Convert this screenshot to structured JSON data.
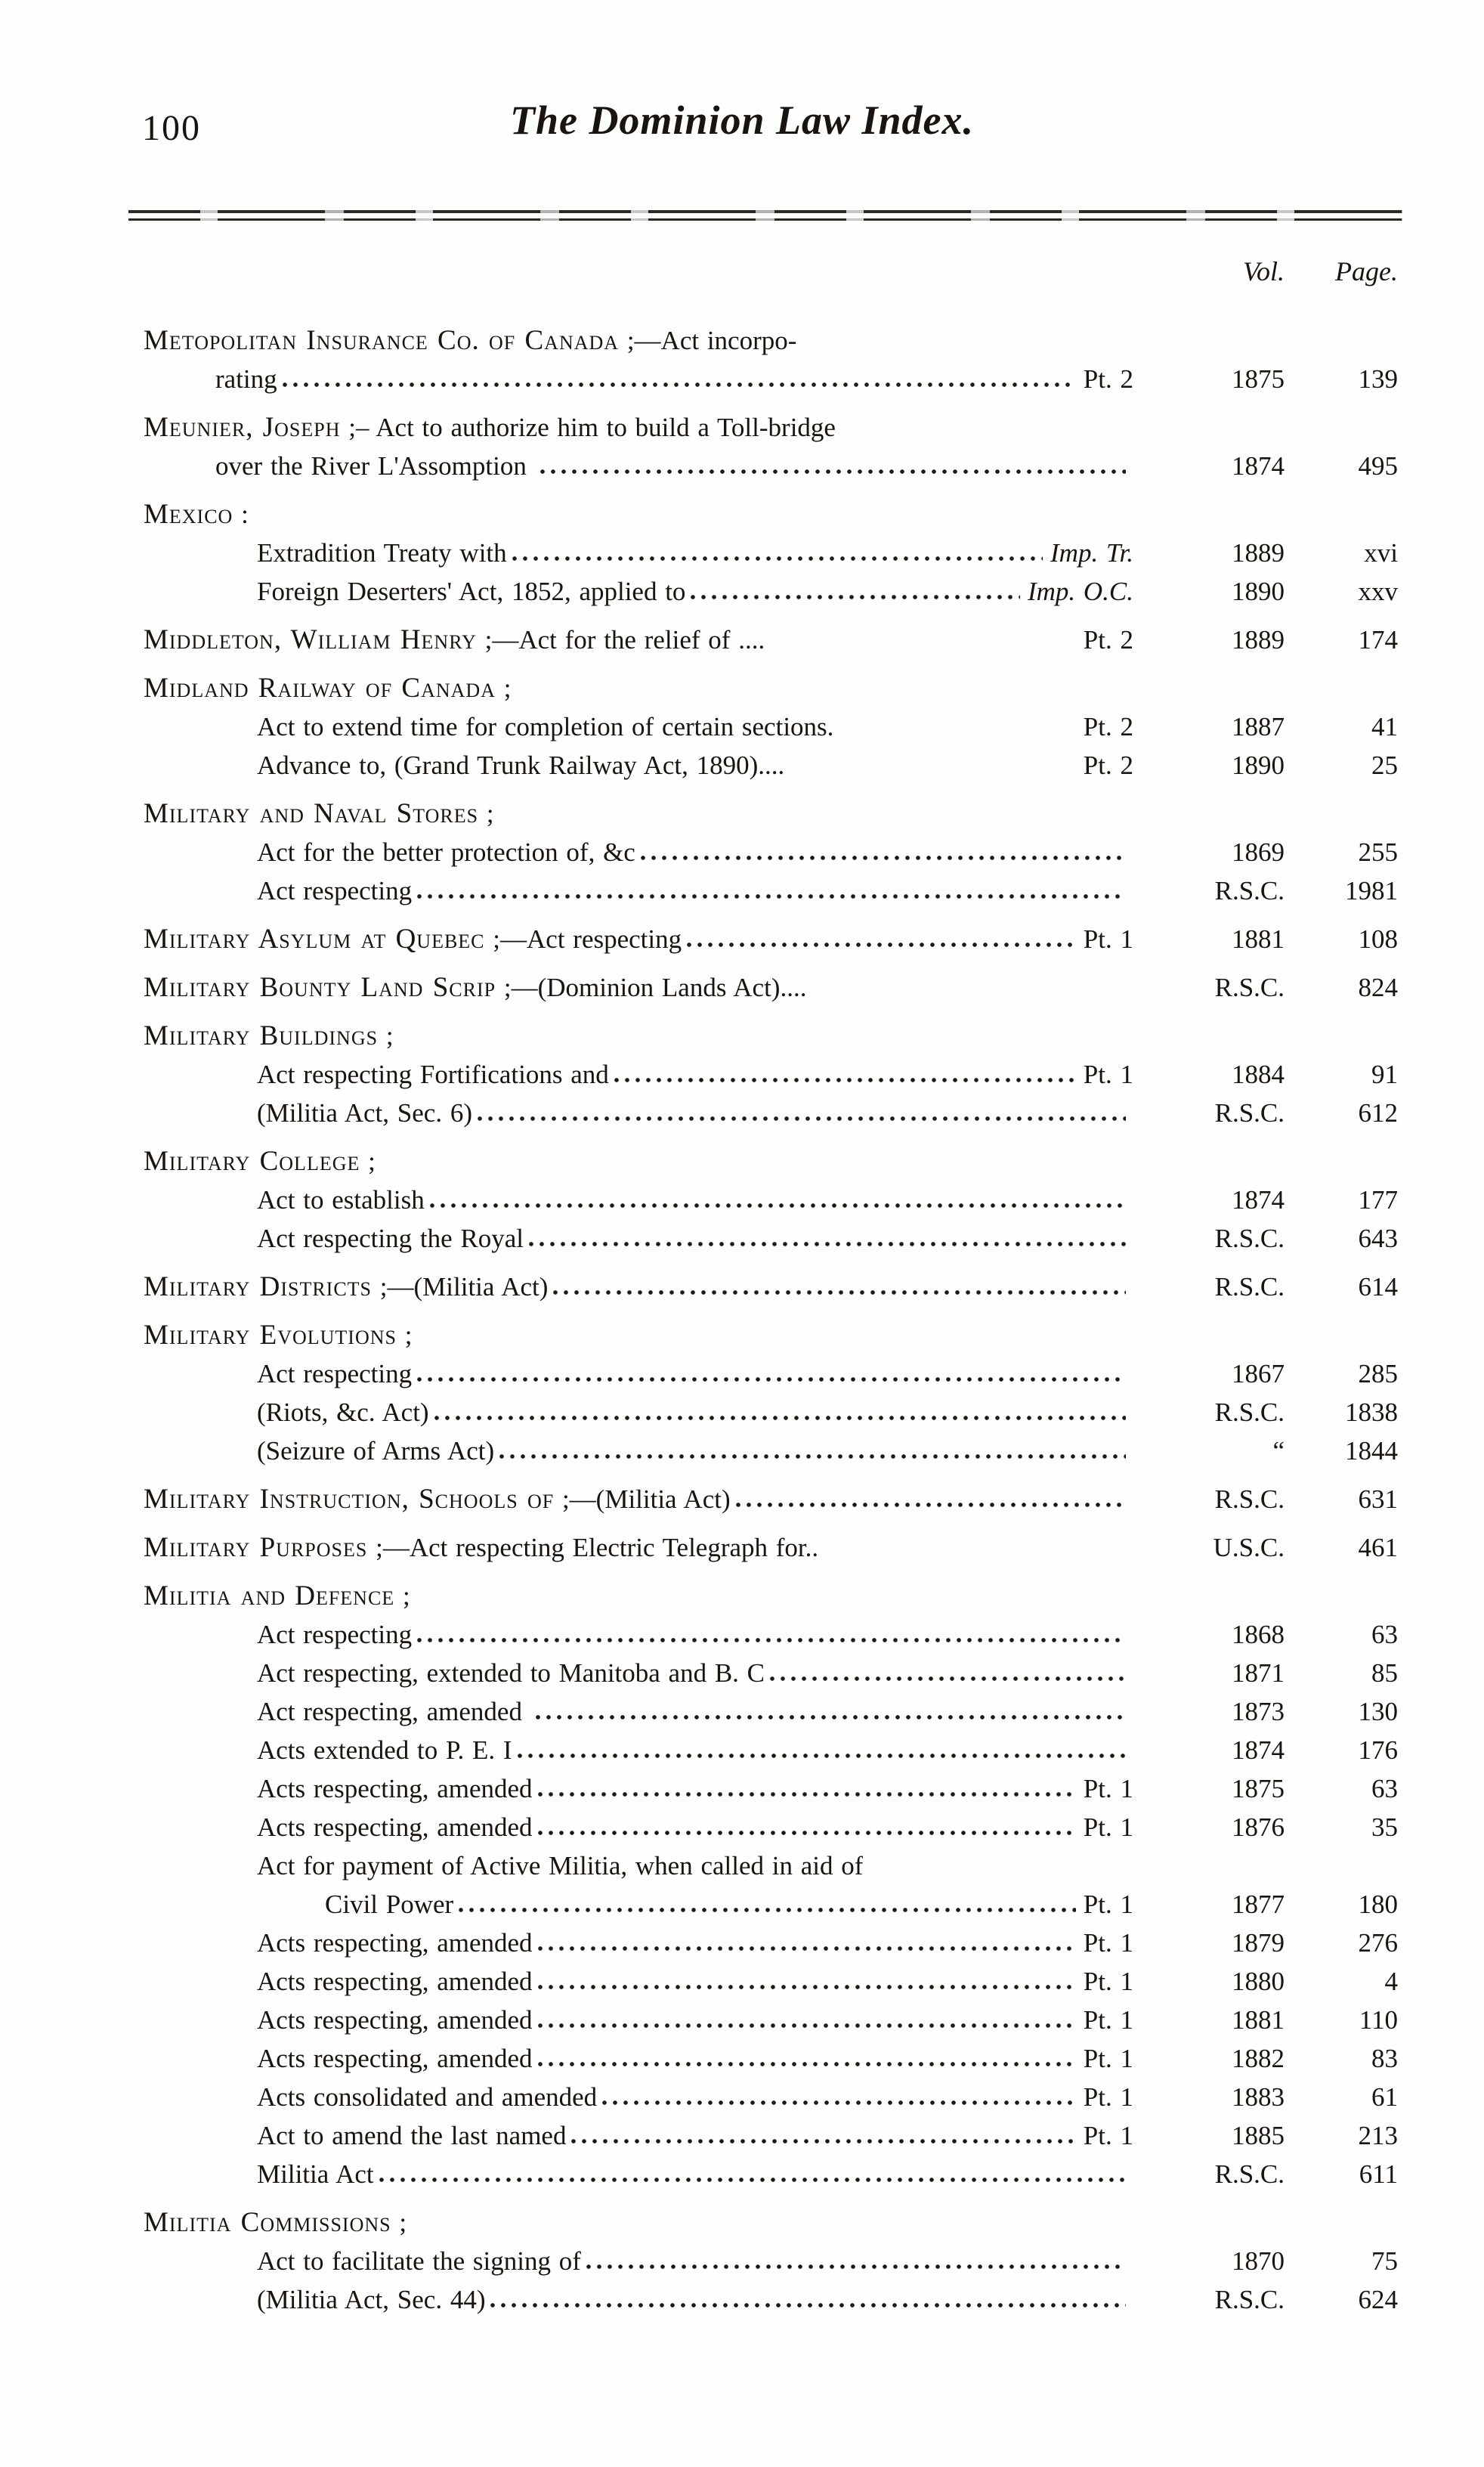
{
  "header": {
    "page_number": "100",
    "title": "The Dominion Law Index.",
    "vol_column_label": "Vol.",
    "page_column_label": "Page."
  },
  "rows": [
    {
      "indent": 0,
      "smallcaps": "Metopolitan Insurance Co. of Canada",
      "text": " ;—Act incorpo-"
    },
    {
      "indent": 1,
      "text": "rating",
      "leader": "dots",
      "tail": "Pt. 2",
      "vol": "1875",
      "page": "139"
    },
    {
      "indent": 0,
      "smallcaps": "Meunier, Joseph",
      "text": " ;– Act to authorize him to build a Toll-bridge"
    },
    {
      "indent": 1,
      "text": "over the River L'Assomption ",
      "leader": "dots",
      "vol": "1874",
      "page": "495"
    },
    {
      "indent": 0,
      "smallcaps": "Mexico",
      "text": " :"
    },
    {
      "indent": 2,
      "text": "Extradition Treaty with",
      "leader": "dots",
      "tail": "Imp. Tr.",
      "tail_italic": true,
      "vol": "1889",
      "page": "xvi"
    },
    {
      "indent": 2,
      "text": "Foreign Deserters' Act, 1852, applied to",
      "leader": "dots",
      "tail": "Imp. O.C.",
      "tail_italic": true,
      "vol": "1890",
      "page": "xxv"
    },
    {
      "indent": 0,
      "smallcaps": "Middleton, William Henry",
      "text": " ;—Act for the relief of ....",
      "leader": "blank",
      "tail": "Pt. 2",
      "vol": "1889",
      "page": "174"
    },
    {
      "indent": 0,
      "smallcaps": "Midland Railway of Canada",
      "text": " ;"
    },
    {
      "indent": 2,
      "text": "Act to extend time for completion of certain sections.",
      "leader": "blank",
      "tail": "Pt. 2",
      "vol": "1887",
      "page": "41"
    },
    {
      "indent": 2,
      "text": "Advance to, (Grand Trunk Railway Act, 1890)....",
      "leader": "blank",
      "tail": "Pt. 2",
      "vol": "1890",
      "page": "25"
    },
    {
      "indent": 0,
      "smallcaps": "Military and Naval Stores",
      "text": " ;"
    },
    {
      "indent": 2,
      "text": "Act for the better protection of, &c",
      "leader": "dots",
      "vol": "1869",
      "page": "255"
    },
    {
      "indent": 2,
      "text": "Act respecting",
      "leader": "dots",
      "vol": "R.S.C.",
      "page": "1981"
    },
    {
      "indent": 0,
      "smallcaps": "Military Asylum at Quebec",
      "text": " ;—Act respecting",
      "leader": "dots",
      "tail": "Pt. 1",
      "vol": "1881",
      "page": "108"
    },
    {
      "indent": 0,
      "smallcaps": "Military Bounty Land Scrip",
      "text": " ;—(Dominion Lands Act)....",
      "leader": "blank",
      "vol": "R.S.C.",
      "page": "824"
    },
    {
      "indent": 0,
      "smallcaps": "Military Buildings",
      "text": " ;"
    },
    {
      "indent": 2,
      "text": "Act respecting Fortifications and",
      "leader": "dots",
      "tail": "Pt. 1",
      "vol": "1884",
      "page": "91"
    },
    {
      "indent": 2,
      "text": "(Militia Act, Sec. 6)",
      "leader": "dots",
      "vol": "R.S.C.",
      "page": "612"
    },
    {
      "indent": 0,
      "smallcaps": "Military College",
      "text": " ;"
    },
    {
      "indent": 2,
      "text": "Act to establish",
      "leader": "dots",
      "vol": "1874",
      "page": "177"
    },
    {
      "indent": 2,
      "text": "Act respecting the Royal",
      "leader": "dots",
      "vol": "R.S.C.",
      "page": "643"
    },
    {
      "indent": 0,
      "smallcaps": "Military Districts",
      "text": " ;—(Militia Act)",
      "leader": "dots",
      "vol": "R.S.C.",
      "page": "614"
    },
    {
      "indent": 0,
      "smallcaps": "Military Evolutions",
      "text": " ;"
    },
    {
      "indent": 2,
      "text": "Act respecting",
      "leader": "dots",
      "vol": "1867",
      "page": "285"
    },
    {
      "indent": 2,
      "text": "(Riots, &c. Act)",
      "leader": "dots",
      "vol": "R.S.C.",
      "page": "1838"
    },
    {
      "indent": 2,
      "text": "(Seizure of Arms Act)",
      "leader": "dots",
      "vol": "“",
      "page": "1844"
    },
    {
      "indent": 0,
      "smallcaps": "Military Instruction, Schools of",
      "text": " ;—(Militia Act)",
      "leader": "dots",
      "vol": "R.S.C.",
      "page": "631"
    },
    {
      "indent": 0,
      "smallcaps": "Military Purposes",
      "text": " ;—Act respecting Electric Telegraph for..",
      "leader": "blank",
      "vol": "U.S.C.",
      "page": "461"
    },
    {
      "indent": 0,
      "smallcaps": "Militia and Defence",
      "text": " ;"
    },
    {
      "indent": 2,
      "text": "Act respecting",
      "leader": "dots",
      "vol": "1868",
      "page": "63"
    },
    {
      "indent": 2,
      "text": "Act respecting, extended to Manitoba and B. C",
      "leader": "dots",
      "vol": "1871",
      "page": "85"
    },
    {
      "indent": 2,
      "text": "Act respecting, amended ",
      "leader": "dots",
      "vol": "1873",
      "page": "130"
    },
    {
      "indent": 2,
      "text": "Acts extended to P. E. I",
      "leader": "dots",
      "vol": "1874",
      "page": "176"
    },
    {
      "indent": 2,
      "text": "Acts respecting, amended",
      "leader": "dots",
      "tail": "Pt. 1",
      "vol": "1875",
      "page": "63"
    },
    {
      "indent": 2,
      "text": "Acts respecting, amended",
      "leader": "dots",
      "tail": "Pt. 1",
      "vol": "1876",
      "page": "35"
    },
    {
      "indent": 2,
      "text": "Act for payment of Active Militia, when called in aid of"
    },
    {
      "indent": 3,
      "text": "Civil Power",
      "leader": "dots",
      "tail": "Pt. 1",
      "vol": "1877",
      "page": "180"
    },
    {
      "indent": 2,
      "text": "Acts respecting, amended",
      "leader": "dots",
      "tail": "Pt. 1",
      "vol": "1879",
      "page": "276"
    },
    {
      "indent": 2,
      "text": "Acts respecting, amended",
      "leader": "dots",
      "tail": "Pt. 1",
      "vol": "1880",
      "page": "4"
    },
    {
      "indent": 2,
      "text": "Acts respecting, amended",
      "leader": "dots",
      "tail": "Pt. 1",
      "vol": "1881",
      "page": "110"
    },
    {
      "indent": 2,
      "text": "Acts respecting, amended",
      "leader": "dots",
      "tail": "Pt. 1",
      "vol": "1882",
      "page": "83"
    },
    {
      "indent": 2,
      "text": "Acts consolidated and amended",
      "leader": "dots",
      "tail": "Pt. 1",
      "vol": "1883",
      "page": "61"
    },
    {
      "indent": 2,
      "text": "Act to amend the last named",
      "leader": "dots",
      "tail": "Pt. 1",
      "vol": "1885",
      "page": "213"
    },
    {
      "indent": 2,
      "text": "Militia Act",
      "leader": "dots",
      "vol": "R.S.C.",
      "page": "611"
    },
    {
      "indent": 0,
      "smallcaps": "Militia Commissions",
      "text": " ;"
    },
    {
      "indent": 2,
      "text": "Act to facilitate the signing of",
      "leader": "dots",
      "vol": "1870",
      "page": "75"
    },
    {
      "indent": 2,
      "text": "(Militia Act, Sec. 44)",
      "leader": "dots",
      "vol": "R.S.C.",
      "page": "624"
    }
  ]
}
